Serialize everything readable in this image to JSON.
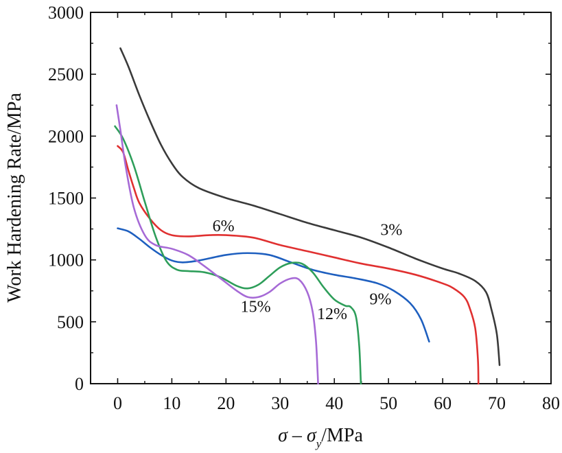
{
  "chart_data": {
    "type": "line",
    "title": "",
    "xlabel": "σ – σ_y/MPa",
    "xlabel_parts": {
      "sigma": "σ",
      "sep": " – ",
      "sigma2": "σ",
      "sub": "y",
      "unit": "/MPa"
    },
    "ylabel": "Work Hardening Rate/MPa",
    "xlim": [
      -5,
      80
    ],
    "ylim": [
      0,
      3000
    ],
    "x_ticks": [
      0,
      10,
      20,
      30,
      40,
      50,
      60,
      70,
      80
    ],
    "x_tick_labels": [
      "0",
      "10",
      "20",
      "30",
      "40",
      "50",
      "60",
      "70",
      "80"
    ],
    "y_ticks": [
      0,
      500,
      1000,
      1500,
      2000,
      2500,
      3000
    ],
    "y_tick_labels": [
      "0",
      "500",
      "1000",
      "1500",
      "2000",
      "2500",
      "3000"
    ],
    "grid": false,
    "legend": "none",
    "series": [
      {
        "name": "3%",
        "color": "#3a3a3a",
        "label_at": [
          48.5,
          1200
        ],
        "points": [
          [
            0.5,
            2710
          ],
          [
            2,
            2560
          ],
          [
            4,
            2330
          ],
          [
            6,
            2120
          ],
          [
            8,
            1930
          ],
          [
            10,
            1780
          ],
          [
            12,
            1670
          ],
          [
            15,
            1580
          ],
          [
            20,
            1500
          ],
          [
            25,
            1440
          ],
          [
            30,
            1370
          ],
          [
            35,
            1300
          ],
          [
            40,
            1240
          ],
          [
            45,
            1180
          ],
          [
            50,
            1100
          ],
          [
            55,
            1010
          ],
          [
            60,
            930
          ],
          [
            63,
            890
          ],
          [
            66,
            830
          ],
          [
            68,
            740
          ],
          [
            69,
            600
          ],
          [
            70,
            400
          ],
          [
            70.5,
            150
          ]
        ]
      },
      {
        "name": "6%",
        "color": "#e03030",
        "label_at": [
          17.5,
          1230
        ],
        "points": [
          [
            0,
            1920
          ],
          [
            1,
            1870
          ],
          [
            2,
            1720
          ],
          [
            3,
            1580
          ],
          [
            4,
            1460
          ],
          [
            6,
            1330
          ],
          [
            8,
            1240
          ],
          [
            10,
            1200
          ],
          [
            13,
            1190
          ],
          [
            17,
            1200
          ],
          [
            20,
            1200
          ],
          [
            25,
            1180
          ],
          [
            30,
            1120
          ],
          [
            35,
            1070
          ],
          [
            40,
            1020
          ],
          [
            45,
            970
          ],
          [
            50,
            930
          ],
          [
            55,
            880
          ],
          [
            60,
            810
          ],
          [
            62,
            770
          ],
          [
            64,
            700
          ],
          [
            65,
            610
          ],
          [
            66,
            450
          ],
          [
            66.5,
            200
          ],
          [
            66.6,
            0
          ]
        ]
      },
      {
        "name": "9%",
        "color": "#1e5fbf",
        "label_at": [
          46.5,
          640
        ],
        "points": [
          [
            0,
            1255
          ],
          [
            2,
            1230
          ],
          [
            4,
            1170
          ],
          [
            6,
            1100
          ],
          [
            8,
            1040
          ],
          [
            10,
            995
          ],
          [
            12,
            980
          ],
          [
            15,
            995
          ],
          [
            20,
            1040
          ],
          [
            24,
            1055
          ],
          [
            28,
            1040
          ],
          [
            32,
            980
          ],
          [
            36,
            920
          ],
          [
            40,
            880
          ],
          [
            44,
            850
          ],
          [
            48,
            810
          ],
          [
            51,
            750
          ],
          [
            54,
            650
          ],
          [
            56,
            520
          ],
          [
            57.5,
            340
          ]
        ]
      },
      {
        "name": "12%",
        "color": "#2e9e5a",
        "label_at": [
          36.8,
          520
        ],
        "points": [
          [
            -0.5,
            2080
          ],
          [
            1,
            1980
          ],
          [
            3,
            1760
          ],
          [
            5,
            1470
          ],
          [
            7,
            1190
          ],
          [
            9,
            990
          ],
          [
            11,
            920
          ],
          [
            13,
            910
          ],
          [
            16,
            900
          ],
          [
            19,
            860
          ],
          [
            22,
            790
          ],
          [
            24,
            770
          ],
          [
            26,
            800
          ],
          [
            28,
            870
          ],
          [
            30,
            940
          ],
          [
            32,
            975
          ],
          [
            34,
            970
          ],
          [
            36,
            900
          ],
          [
            38,
            780
          ],
          [
            40,
            680
          ],
          [
            42,
            630
          ],
          [
            43,
            620
          ],
          [
            44,
            540
          ],
          [
            44.6,
            300
          ],
          [
            44.9,
            0
          ]
        ]
      },
      {
        "name": "15%",
        "color": "#a66ad6",
        "label_at": [
          22.7,
          580
        ],
        "points": [
          [
            -0.2,
            2250
          ],
          [
            0.5,
            2050
          ],
          [
            1.5,
            1750
          ],
          [
            3,
            1420
          ],
          [
            5,
            1200
          ],
          [
            7,
            1120
          ],
          [
            10,
            1090
          ],
          [
            13,
            1040
          ],
          [
            16,
            950
          ],
          [
            19,
            850
          ],
          [
            22,
            750
          ],
          [
            24,
            700
          ],
          [
            26,
            700
          ],
          [
            28,
            740
          ],
          [
            30,
            810
          ],
          [
            32,
            850
          ],
          [
            33.5,
            840
          ],
          [
            35,
            740
          ],
          [
            36,
            580
          ],
          [
            36.6,
            350
          ],
          [
            36.9,
            100
          ],
          [
            37,
            0
          ]
        ]
      }
    ]
  }
}
